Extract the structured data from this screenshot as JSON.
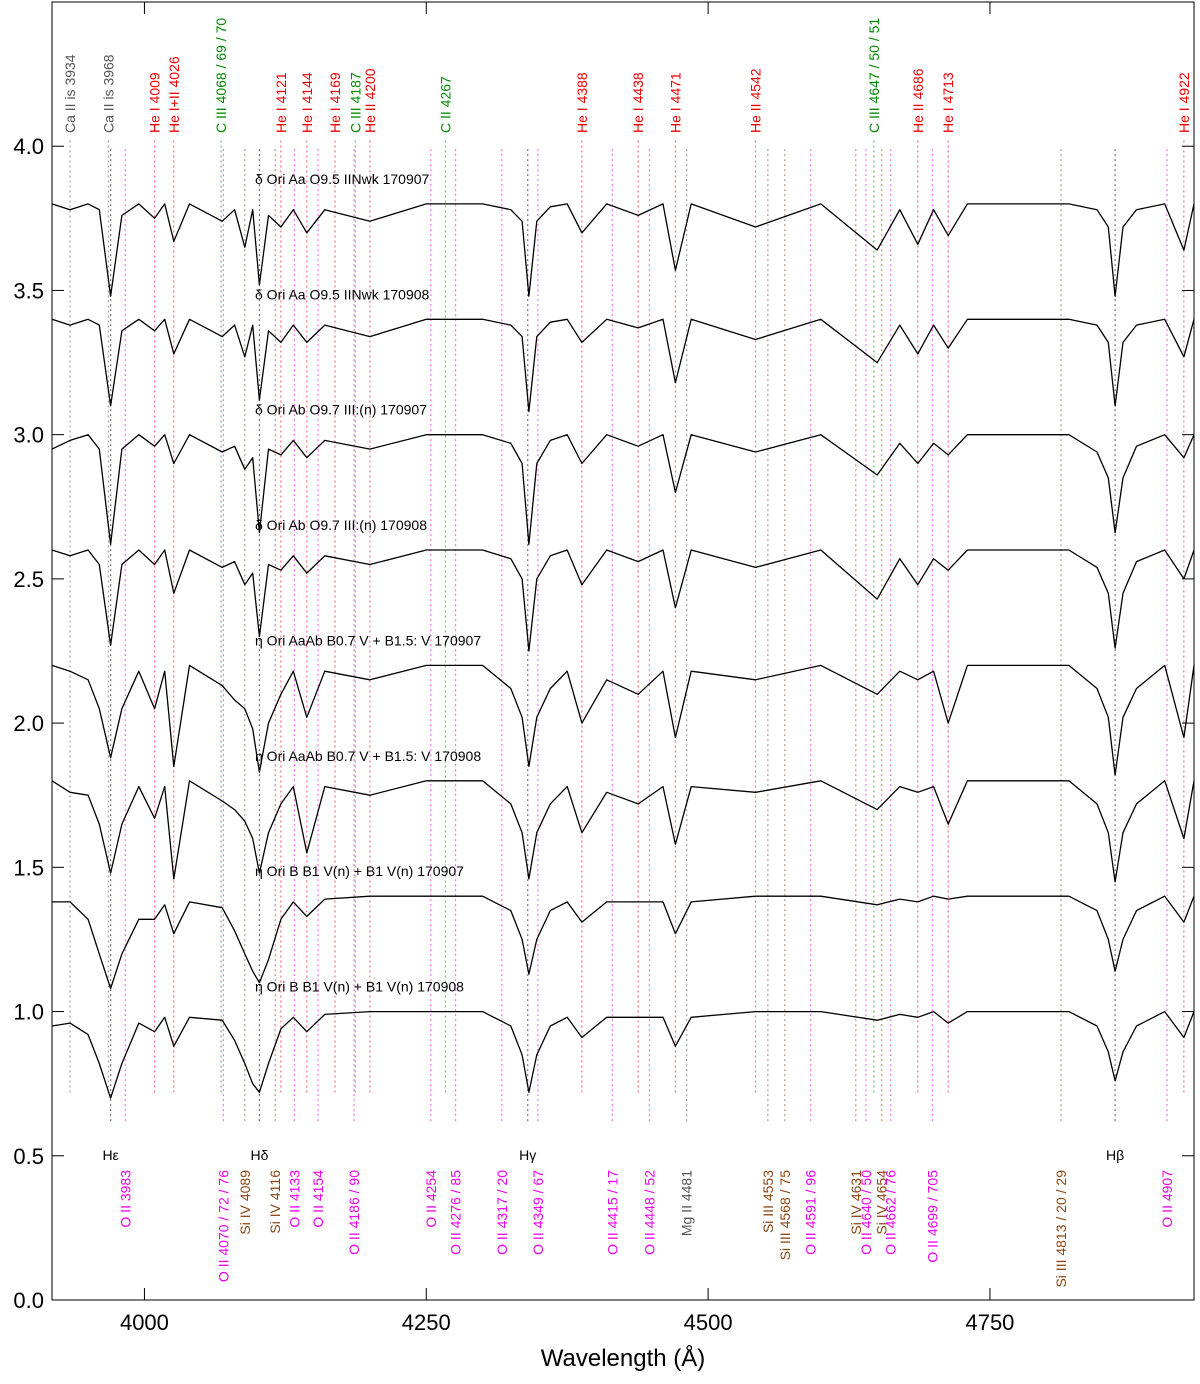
{
  "chart_data": {
    "type": "line",
    "xlabel": "Wavelength (Å)",
    "xlim": [
      3918,
      4931
    ],
    "ylim": [
      0,
      4.5
    ],
    "xticks": [
      4000,
      4250,
      4500,
      4750
    ],
    "yticks": [
      {
        "value": 0,
        "label": "0.0"
      },
      0.5,
      {
        "value": 1,
        "label": "1.0"
      },
      1.5,
      {
        "value": 2,
        "label": "2.0"
      },
      2.5,
      {
        "value": 3,
        "label": "3.0"
      },
      3.5,
      {
        "value": 4,
        "label": "4.0"
      }
    ],
    "x": [
      3918,
      3934,
      3950,
      3960,
      3970,
      3980,
      3995,
      4009,
      4018,
      4026,
      4040,
      4069,
      4080,
      4089,
      4096,
      4102,
      4110,
      4121,
      4132,
      4144,
      4160,
      4200,
      4250,
      4300,
      4325,
      4335,
      4341,
      4348,
      4360,
      4375,
      4388,
      4410,
      4438,
      4460,
      4471,
      4485,
      4542,
      4600,
      4650,
      4670,
      4686,
      4700,
      4713,
      4730,
      4820,
      4845,
      4855,
      4861,
      4868,
      4880,
      4905,
      4922,
      4931
    ],
    "series": [
      {
        "name": "δ Ori Aa   O9.5 IINwk 170907",
        "color": "#000000",
        "values": [
          3.8,
          3.78,
          3.8,
          3.78,
          3.48,
          3.76,
          3.8,
          3.75,
          3.8,
          3.67,
          3.8,
          3.74,
          3.78,
          3.65,
          3.78,
          3.52,
          3.76,
          3.72,
          3.78,
          3.7,
          3.78,
          3.74,
          3.8,
          3.8,
          3.78,
          3.74,
          3.48,
          3.74,
          3.79,
          3.8,
          3.7,
          3.8,
          3.76,
          3.8,
          3.57,
          3.8,
          3.72,
          3.8,
          3.64,
          3.78,
          3.66,
          3.78,
          3.69,
          3.8,
          3.8,
          3.78,
          3.72,
          3.48,
          3.72,
          3.78,
          3.8,
          3.64,
          3.8
        ]
      },
      {
        "name": "δ Ori Aa   O9.5 IINwk 170908",
        "color": "#000000",
        "values": [
          3.4,
          3.38,
          3.4,
          3.38,
          3.1,
          3.36,
          3.4,
          3.36,
          3.4,
          3.28,
          3.4,
          3.34,
          3.38,
          3.27,
          3.38,
          3.12,
          3.36,
          3.32,
          3.38,
          3.32,
          3.38,
          3.34,
          3.4,
          3.4,
          3.38,
          3.34,
          3.08,
          3.34,
          3.39,
          3.4,
          3.32,
          3.4,
          3.37,
          3.4,
          3.18,
          3.4,
          3.33,
          3.4,
          3.25,
          3.38,
          3.28,
          3.38,
          3.3,
          3.4,
          3.4,
          3.38,
          3.32,
          3.1,
          3.32,
          3.38,
          3.4,
          3.27,
          3.4
        ]
      },
      {
        "name": "δ Ori Ab   O9.7 III:(n) 170907",
        "color": "#000000",
        "values": [
          2.95,
          2.98,
          3.0,
          2.95,
          2.62,
          2.95,
          3.0,
          2.96,
          3.0,
          2.9,
          3.0,
          2.94,
          2.96,
          2.88,
          2.92,
          2.66,
          2.95,
          2.93,
          2.98,
          2.92,
          2.98,
          2.95,
          3.0,
          3.0,
          2.97,
          2.9,
          2.62,
          2.9,
          2.98,
          3.0,
          2.9,
          3.0,
          2.96,
          3.0,
          2.8,
          3.0,
          2.94,
          3.0,
          2.86,
          2.97,
          2.9,
          2.97,
          2.93,
          3.0,
          3.0,
          2.94,
          2.85,
          2.66,
          2.85,
          2.96,
          3.0,
          2.92,
          3.0
        ]
      },
      {
        "name": "δ Ori Ab   O9.7 III:(n) 170908",
        "color": "#000000",
        "values": [
          2.6,
          2.58,
          2.6,
          2.55,
          2.27,
          2.55,
          2.6,
          2.55,
          2.6,
          2.45,
          2.6,
          2.54,
          2.56,
          2.48,
          2.52,
          2.3,
          2.55,
          2.53,
          2.58,
          2.52,
          2.58,
          2.55,
          2.6,
          2.6,
          2.57,
          2.5,
          2.25,
          2.5,
          2.58,
          2.6,
          2.48,
          2.6,
          2.56,
          2.6,
          2.4,
          2.6,
          2.54,
          2.6,
          2.43,
          2.57,
          2.48,
          2.57,
          2.53,
          2.6,
          2.6,
          2.54,
          2.45,
          2.26,
          2.45,
          2.56,
          2.6,
          2.5,
          2.6
        ]
      },
      {
        "name": "η Ori AaAb   B0.7 V + B1.5: V 170907",
        "color": "#000000",
        "values": [
          2.2,
          2.18,
          2.15,
          2.05,
          1.88,
          2.05,
          2.18,
          2.05,
          2.18,
          1.85,
          2.2,
          2.13,
          2.08,
          2.05,
          1.98,
          1.83,
          2.0,
          2.1,
          2.18,
          2.02,
          2.18,
          2.15,
          2.2,
          2.2,
          2.12,
          2.02,
          1.85,
          2.02,
          2.12,
          2.18,
          2.0,
          2.15,
          2.1,
          2.18,
          1.95,
          2.18,
          2.15,
          2.2,
          2.1,
          2.18,
          2.15,
          2.18,
          2.0,
          2.2,
          2.2,
          2.12,
          2.02,
          1.82,
          2.02,
          2.12,
          2.2,
          1.95,
          2.2
        ]
      },
      {
        "name": "η Ori AaAb   B0.7 V + B1.5: V 170908",
        "color": "#000000",
        "values": [
          1.8,
          1.76,
          1.75,
          1.65,
          1.48,
          1.65,
          1.78,
          1.67,
          1.78,
          1.46,
          1.8,
          1.73,
          1.7,
          1.66,
          1.6,
          1.48,
          1.62,
          1.72,
          1.78,
          1.55,
          1.78,
          1.75,
          1.8,
          1.8,
          1.72,
          1.62,
          1.46,
          1.62,
          1.72,
          1.78,
          1.62,
          1.76,
          1.72,
          1.78,
          1.58,
          1.78,
          1.76,
          1.8,
          1.7,
          1.78,
          1.76,
          1.78,
          1.65,
          1.8,
          1.8,
          1.72,
          1.62,
          1.45,
          1.62,
          1.72,
          1.8,
          1.6,
          1.8
        ]
      },
      {
        "name": "η Ori B   B1 V(n) + B1 V(n) 170907",
        "color": "#000000",
        "values": [
          1.38,
          1.38,
          1.32,
          1.2,
          1.08,
          1.2,
          1.32,
          1.32,
          1.37,
          1.27,
          1.38,
          1.36,
          1.28,
          1.2,
          1.14,
          1.1,
          1.18,
          1.32,
          1.38,
          1.33,
          1.39,
          1.4,
          1.4,
          1.4,
          1.35,
          1.25,
          1.13,
          1.25,
          1.35,
          1.38,
          1.31,
          1.38,
          1.38,
          1.38,
          1.27,
          1.38,
          1.4,
          1.4,
          1.37,
          1.39,
          1.38,
          1.4,
          1.39,
          1.4,
          1.4,
          1.35,
          1.25,
          1.14,
          1.25,
          1.35,
          1.4,
          1.31,
          1.4
        ]
      },
      {
        "name": "η Ori B   B1 V(n) + B1 V(n) 170908",
        "color": "#000000",
        "values": [
          0.95,
          0.96,
          0.92,
          0.82,
          0.7,
          0.82,
          0.96,
          0.93,
          0.98,
          0.88,
          0.98,
          0.97,
          0.9,
          0.82,
          0.75,
          0.72,
          0.82,
          0.94,
          0.98,
          0.93,
          0.99,
          1.0,
          1.0,
          1.0,
          0.95,
          0.85,
          0.72,
          0.85,
          0.95,
          0.98,
          0.91,
          0.98,
          0.98,
          0.98,
          0.88,
          0.98,
          1.0,
          1.0,
          0.97,
          0.99,
          0.98,
          1.0,
          0.96,
          1.0,
          1.0,
          0.95,
          0.86,
          0.76,
          0.86,
          0.95,
          1.0,
          0.91,
          1.0
        ]
      }
    ],
    "line_ids": [
      {
        "label": "Ca II is 3934",
        "wavelength": 3934,
        "color": "#555555",
        "position": "top"
      },
      {
        "label": "Ca II is 3968",
        "wavelength": 3968,
        "color": "#555555",
        "position": "top"
      },
      {
        "label": "He I 4009",
        "wavelength": 4009,
        "color": "#ee0000",
        "position": "top"
      },
      {
        "label": "He I+II 4026",
        "wavelength": 4026,
        "color": "#ee0000",
        "position": "top"
      },
      {
        "label": "C III 4068 / 69 / 70",
        "wavelength": 4068,
        "color": "#008800",
        "position": "top"
      },
      {
        "label": "He I 4121",
        "wavelength": 4121,
        "color": "#ee0000",
        "position": "top"
      },
      {
        "label": "He I 4144",
        "wavelength": 4144,
        "color": "#ee0000",
        "position": "top"
      },
      {
        "label": "He I 4169",
        "wavelength": 4169,
        "color": "#ee0000",
        "position": "top"
      },
      {
        "label": "C III 4187",
        "wavelength": 4187,
        "color": "#008800",
        "position": "top"
      },
      {
        "label": "He II 4200",
        "wavelength": 4200,
        "color": "#ee0000",
        "position": "top"
      },
      {
        "label": "C II 4267",
        "wavelength": 4267,
        "color": "#008800",
        "position": "top"
      },
      {
        "label": "He I 4388",
        "wavelength": 4388,
        "color": "#ee0000",
        "position": "top"
      },
      {
        "label": "He I 4438",
        "wavelength": 4438,
        "color": "#ee0000",
        "position": "top"
      },
      {
        "label": "He I 4471",
        "wavelength": 4471,
        "color": "#ee0000",
        "position": "top"
      },
      {
        "label": "He II 4542",
        "wavelength": 4542,
        "color": "#ee0000",
        "position": "top"
      },
      {
        "label": "C III 4647 / 50 / 51",
        "wavelength": 4647,
        "color": "#008800",
        "position": "top"
      },
      {
        "label": "He II 4686",
        "wavelength": 4686,
        "color": "#ee0000",
        "position": "top"
      },
      {
        "label": "He I 4713",
        "wavelength": 4713,
        "color": "#ee0000",
        "position": "top"
      },
      {
        "label": "He I 4922",
        "wavelength": 4922,
        "color": "#ee0000",
        "position": "top"
      },
      {
        "label": "Hε",
        "wavelength": 3970,
        "color": "#000000",
        "position": "bottom"
      },
      {
        "label": "O II 3983",
        "wavelength": 3983,
        "color": "#ee00ee",
        "position": "bottom"
      },
      {
        "label": "O II 4070 / 72 / 76",
        "wavelength": 4070,
        "color": "#ee00ee",
        "position": "bottom"
      },
      {
        "label": "Si IV 4089",
        "wavelength": 4089,
        "color": "#8b4513",
        "position": "bottom"
      },
      {
        "label": "Hδ",
        "wavelength": 4102,
        "color": "#000000",
        "position": "bottom"
      },
      {
        "label": "Si IV 4116",
        "wavelength": 4116,
        "color": "#8b4513",
        "position": "bottom"
      },
      {
        "label": "O II 4133",
        "wavelength": 4133,
        "color": "#ee00ee",
        "position": "bottom"
      },
      {
        "label": "O II 4154",
        "wavelength": 4154,
        "color": "#ee00ee",
        "position": "bottom"
      },
      {
        "label": "O II 4186 / 90",
        "wavelength": 4186,
        "color": "#ee00ee",
        "position": "bottom"
      },
      {
        "label": "O II 4254",
        "wavelength": 4254,
        "color": "#ee00ee",
        "position": "bottom"
      },
      {
        "label": "O II 4276 / 85",
        "wavelength": 4276,
        "color": "#ee00ee",
        "position": "bottom"
      },
      {
        "label": "O II 4317 / 20",
        "wavelength": 4317,
        "color": "#ee00ee",
        "position": "bottom"
      },
      {
        "label": "Hγ",
        "wavelength": 4340,
        "color": "#000000",
        "position": "bottom"
      },
      {
        "label": "O II 4349 / 67",
        "wavelength": 4349,
        "color": "#ee00ee",
        "position": "bottom"
      },
      {
        "label": "O II 4415 / 17",
        "wavelength": 4415,
        "color": "#ee00ee",
        "position": "bottom"
      },
      {
        "label": "O II 4448 / 52",
        "wavelength": 4448,
        "color": "#ee00ee",
        "position": "bottom"
      },
      {
        "label": "Mg II 4481",
        "wavelength": 4481,
        "color": "#555555",
        "position": "bottom"
      },
      {
        "label": "Si III 4553",
        "wavelength": 4553,
        "color": "#8b4513",
        "position": "bottom"
      },
      {
        "label": "Si III 4568 / 75",
        "wavelength": 4568,
        "color": "#8b4513",
        "position": "bottom"
      },
      {
        "label": "O II 4591 / 96",
        "wavelength": 4591,
        "color": "#ee00ee",
        "position": "bottom"
      },
      {
        "label": "Si IV 4631",
        "wavelength": 4631,
        "color": "#8b4513",
        "position": "bottom"
      },
      {
        "label": "O II 4640 / 50",
        "wavelength": 4640,
        "color": "#ee00ee",
        "position": "bottom"
      },
      {
        "label": "Si IV 4654",
        "wavelength": 4654,
        "color": "#8b4513",
        "position": "bottom"
      },
      {
        "label": "O II 4662 / 76",
        "wavelength": 4662,
        "color": "#ee00ee",
        "position": "bottom"
      },
      {
        "label": "O II 4699 / 705",
        "wavelength": 4699,
        "color": "#ee00ee",
        "position": "bottom"
      },
      {
        "label": "Si III 4813 / 20 / 29",
        "wavelength": 4813,
        "color": "#8b4513",
        "position": "bottom"
      },
      {
        "label": "Hβ",
        "wavelength": 4861,
        "color": "#000000",
        "position": "bottom"
      },
      {
        "label": "O II 4907",
        "wavelength": 4907,
        "color": "#ee00ee",
        "position": "bottom"
      }
    ]
  }
}
